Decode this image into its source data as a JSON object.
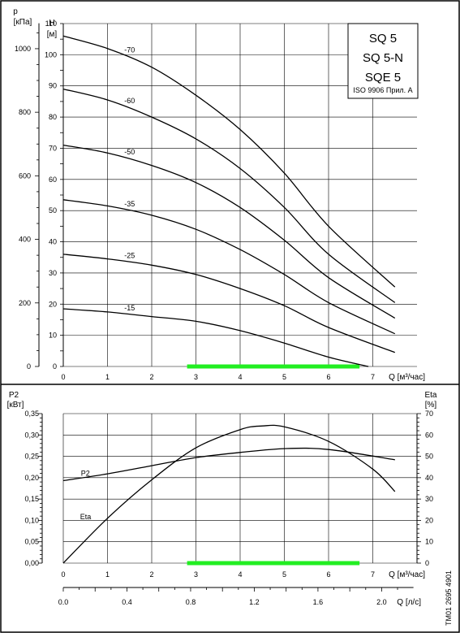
{
  "page_id": "TM01 2695 4901",
  "title_box": {
    "lines": [
      "SQ 5",
      "SQ 5-N",
      "SQE 5"
    ],
    "standard": "ISO 9906 Прил. A"
  },
  "chart_data": [
    {
      "type": "line",
      "name": "head",
      "xlabel": "Q [м³/час]",
      "x_unit": "м³/час",
      "xlim": [
        0,
        8
      ],
      "x_ticks": [
        0,
        1,
        2,
        3,
        4,
        5,
        6,
        7
      ],
      "ylabel": "H",
      "y_unit": "[м]",
      "ylim": [
        0,
        110
      ],
      "y_ticks": [
        0,
        10,
        20,
        30,
        40,
        50,
        60,
        70,
        80,
        90,
        100,
        110
      ],
      "secondary_axis": {
        "label": "p",
        "unit": "[кПа]",
        "ticks": [
          0,
          200,
          400,
          600,
          800,
          1000
        ],
        "factor_per_m": 9.81
      },
      "grid": true,
      "recommended_range": {
        "x": [
          2.8,
          6.7
        ],
        "color": "#22ee22"
      },
      "series": [
        {
          "name": "-70",
          "x": [
            0,
            1,
            2,
            3,
            4,
            5,
            6,
            7.5
          ],
          "y": [
            106,
            102,
            96,
            87,
            76,
            62,
            45,
            25.5
          ]
        },
        {
          "name": "-60",
          "x": [
            0,
            1,
            2,
            3,
            4,
            5,
            6,
            7.5
          ],
          "y": [
            89,
            85.5,
            80,
            73,
            63.5,
            51,
            36,
            20.5
          ]
        },
        {
          "name": "-50",
          "x": [
            0,
            1,
            2,
            3,
            4,
            5,
            6,
            7.5
          ],
          "y": [
            71,
            68.5,
            64.5,
            59,
            51,
            40.5,
            28.5,
            15.5
          ]
        },
        {
          "name": "-35",
          "x": [
            0,
            1,
            2,
            3,
            4,
            5,
            6,
            7.5
          ],
          "y": [
            53.5,
            51.5,
            48.5,
            44,
            37.5,
            29.5,
            20.5,
            10.5
          ]
        },
        {
          "name": "-25",
          "x": [
            0,
            1,
            2,
            3,
            4,
            5,
            6,
            7.5
          ],
          "y": [
            36,
            34.5,
            32.5,
            29.5,
            25,
            19.5,
            12.5,
            4.5
          ]
        },
        {
          "name": "-15",
          "x": [
            0,
            1,
            2,
            3,
            4,
            5,
            6,
            6.9
          ],
          "y": [
            18.5,
            17.5,
            16,
            14.5,
            11.5,
            7.5,
            3,
            0
          ]
        }
      ]
    },
    {
      "type": "line",
      "name": "power_efficiency",
      "xlabel": "Q [м³/час]",
      "x_unit": "м³/час",
      "xlim": [
        0,
        8
      ],
      "x_ticks": [
        0,
        1,
        2,
        3,
        4,
        5,
        6,
        7
      ],
      "x2_label": "Q [л/с]",
      "x2_ticks": [
        "0.0",
        "0.4",
        "0.8",
        "1.2",
        "1.6",
        "2.0"
      ],
      "x2_factor": 3.6,
      "ylabel": "P2",
      "y_unit": "[кВт]",
      "ylim": [
        0,
        0.35
      ],
      "y_ticks": [
        "0,00",
        "0,05",
        "0,10",
        "0,15",
        "0,20",
        "0,25",
        "0,30",
        "0,35"
      ],
      "y2_label": "Eta",
      "y2_unit": "[%]",
      "y2_lim": [
        0,
        70
      ],
      "y2_ticks": [
        0,
        10,
        20,
        30,
        40,
        50,
        60,
        70
      ],
      "grid": true,
      "recommended_range": {
        "x": [
          2.8,
          6.7
        ],
        "color": "#22ee22"
      },
      "series": [
        {
          "name": "P2",
          "axis": "left",
          "x": [
            0,
            1,
            2,
            3,
            4,
            5,
            6,
            7.5
          ],
          "y": [
            0.193,
            0.209,
            0.228,
            0.247,
            0.259,
            0.268,
            0.266,
            0.242
          ]
        },
        {
          "name": "Eta",
          "axis": "right",
          "x": [
            0,
            1,
            2,
            3,
            4,
            4.5,
            5,
            6,
            7,
            7.5
          ],
          "y": [
            0,
            21,
            39,
            54,
            62.5,
            64.2,
            63.8,
            57,
            44,
            33.5
          ]
        }
      ]
    }
  ]
}
